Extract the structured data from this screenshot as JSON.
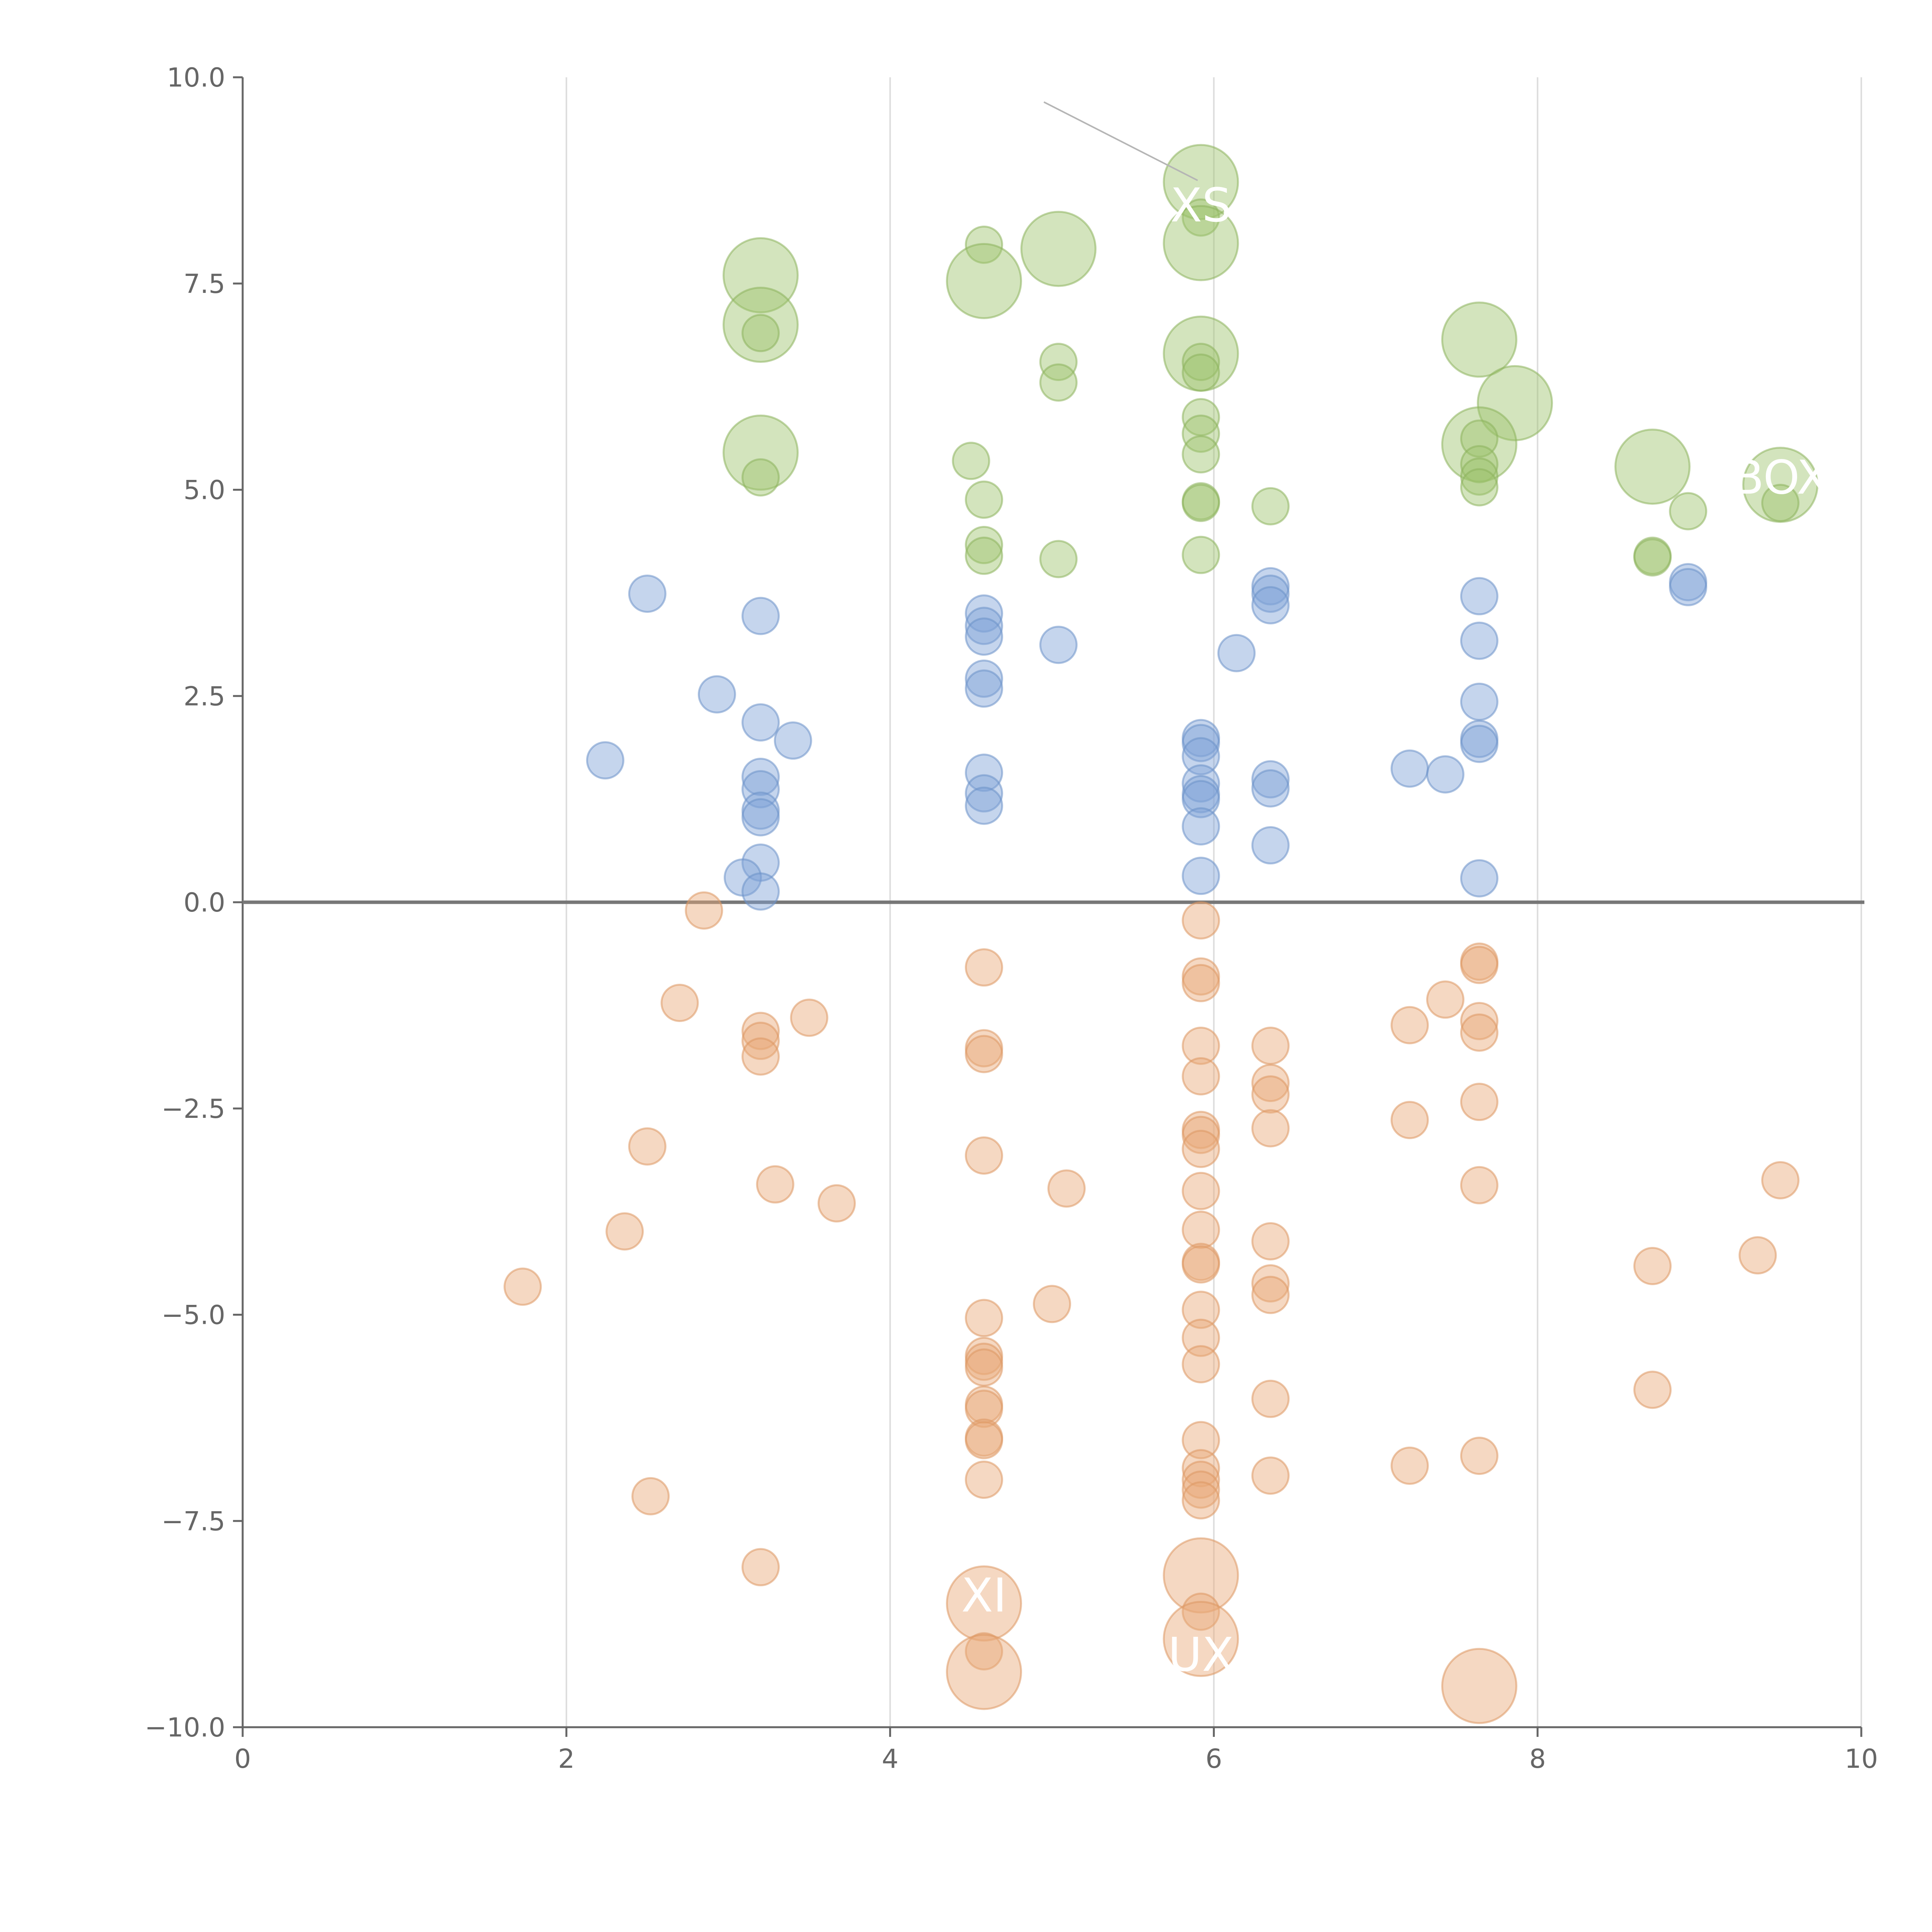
{
  "chart_data": {
    "type": "scatter",
    "title": "",
    "xlabel": "",
    "ylabel": "",
    "xlim": [
      0,
      10
    ],
    "ylim": [
      -10,
      10
    ],
    "x_ticks": [
      0,
      2,
      4,
      6,
      8,
      10
    ],
    "x_tick_labels": [
      "0",
      "2",
      "4",
      "6",
      "8",
      "10"
    ],
    "y_ticks": [
      10,
      7.5,
      5,
      2.5,
      0,
      -2.5,
      -5,
      -7.5,
      -10
    ],
    "y_tick_labels": [
      "10.0",
      "7.5",
      "5.0",
      "2.5",
      "0.0",
      "−2.5",
      "−5.0",
      "−7.5",
      "−10.0"
    ],
    "grid": "vertical",
    "zero_line": true,
    "series": [
      {
        "name": "green",
        "color": "#9dc46d",
        "stroke": "#8db35d",
        "points": [
          {
            "x": 3.2,
            "y": 7.6,
            "s": 2
          },
          {
            "x": 3.2,
            "y": 7.0,
            "s": 2
          },
          {
            "x": 3.2,
            "y": 6.9,
            "s": 1
          },
          {
            "x": 3.2,
            "y": 5.45,
            "s": 2
          },
          {
            "x": 3.2,
            "y": 5.15,
            "s": 1
          },
          {
            "x": 4.58,
            "y": 7.97,
            "s": 1
          },
          {
            "x": 4.58,
            "y": 7.53,
            "s": 2
          },
          {
            "x": 5.04,
            "y": 7.92,
            "s": 2
          },
          {
            "x": 5.04,
            "y": 6.55,
            "s": 1
          },
          {
            "x": 5.04,
            "y": 6.3,
            "s": 1
          },
          {
            "x": 4.5,
            "y": 5.35,
            "s": 1
          },
          {
            "x": 4.58,
            "y": 4.88,
            "s": 1
          },
          {
            "x": 4.58,
            "y": 4.33,
            "s": 1
          },
          {
            "x": 4.58,
            "y": 4.2,
            "s": 1
          },
          {
            "x": 5.04,
            "y": 4.16,
            "s": 1
          },
          {
            "x": 5.92,
            "y": 8.73,
            "s": 2
          },
          {
            "x": 5.92,
            "y": 8.3,
            "s": 1
          },
          {
            "x": 5.92,
            "y": 7.99,
            "s": 2
          },
          {
            "x": 5.92,
            "y": 6.65,
            "s": 2
          },
          {
            "x": 5.92,
            "y": 6.55,
            "s": 1
          },
          {
            "x": 5.92,
            "y": 6.42,
            "s": 1
          },
          {
            "x": 5.92,
            "y": 5.88,
            "s": 1
          },
          {
            "x": 5.92,
            "y": 5.68,
            "s": 1
          },
          {
            "x": 5.92,
            "y": 5.43,
            "s": 1
          },
          {
            "x": 5.92,
            "y": 4.86,
            "s": 1
          },
          {
            "x": 5.92,
            "y": 4.84,
            "s": 1
          },
          {
            "x": 5.92,
            "y": 4.21,
            "s": 1
          },
          {
            "x": 6.35,
            "y": 4.8,
            "s": 1
          },
          {
            "x": 7.64,
            "y": 6.82,
            "s": 2
          },
          {
            "x": 7.86,
            "y": 6.05,
            "s": 2
          },
          {
            "x": 7.64,
            "y": 5.55,
            "s": 2
          },
          {
            "x": 7.64,
            "y": 5.62,
            "s": 1
          },
          {
            "x": 7.64,
            "y": 5.31,
            "s": 1
          },
          {
            "x": 7.64,
            "y": 5.16,
            "s": 1
          },
          {
            "x": 7.64,
            "y": 5.03,
            "s": 1
          },
          {
            "x": 8.71,
            "y": 5.28,
            "s": 2
          },
          {
            "x": 9.5,
            "y": 5.06,
            "s": 2
          },
          {
            "x": 9.5,
            "y": 4.84,
            "s": 1
          },
          {
            "x": 8.93,
            "y": 4.74,
            "s": 1
          },
          {
            "x": 8.71,
            "y": 4.2,
            "s": 1
          },
          {
            "x": 8.71,
            "y": 4.18,
            "s": 1
          }
        ]
      },
      {
        "name": "blue",
        "color": "#7ea2d6",
        "stroke": "#6c92c9",
        "points": [
          {
            "x": 2.5,
            "y": 3.74,
            "s": 1
          },
          {
            "x": 3.2,
            "y": 3.47,
            "s": 1
          },
          {
            "x": 2.93,
            "y": 2.52,
            "s": 1
          },
          {
            "x": 3.2,
            "y": 2.18,
            "s": 1
          },
          {
            "x": 3.4,
            "y": 1.96,
            "s": 1
          },
          {
            "x": 2.24,
            "y": 1.72,
            "s": 1
          },
          {
            "x": 3.2,
            "y": 1.52,
            "s": 1
          },
          {
            "x": 3.2,
            "y": 1.37,
            "s": 1
          },
          {
            "x": 3.2,
            "y": 1.11,
            "s": 1
          },
          {
            "x": 3.2,
            "y": 1.03,
            "s": 1
          },
          {
            "x": 3.2,
            "y": 0.48,
            "s": 1
          },
          {
            "x": 3.09,
            "y": 0.3,
            "s": 1
          },
          {
            "x": 3.2,
            "y": 0.13,
            "s": 1
          },
          {
            "x": 4.58,
            "y": 3.5,
            "s": 1
          },
          {
            "x": 4.58,
            "y": 3.35,
            "s": 1
          },
          {
            "x": 4.58,
            "y": 3.22,
            "s": 1
          },
          {
            "x": 5.04,
            "y": 3.12,
            "s": 1
          },
          {
            "x": 4.58,
            "y": 2.71,
            "s": 1
          },
          {
            "x": 4.58,
            "y": 2.59,
            "s": 1
          },
          {
            "x": 4.58,
            "y": 1.57,
            "s": 1
          },
          {
            "x": 4.58,
            "y": 1.32,
            "s": 1
          },
          {
            "x": 4.58,
            "y": 1.17,
            "s": 1
          },
          {
            "x": 6.35,
            "y": 3.83,
            "s": 1
          },
          {
            "x": 6.35,
            "y": 3.74,
            "s": 1
          },
          {
            "x": 6.35,
            "y": 3.6,
            "s": 1
          },
          {
            "x": 6.14,
            "y": 3.02,
            "s": 1
          },
          {
            "x": 5.92,
            "y": 1.99,
            "s": 1
          },
          {
            "x": 5.92,
            "y": 1.93,
            "s": 1
          },
          {
            "x": 5.92,
            "y": 1.77,
            "s": 1
          },
          {
            "x": 6.35,
            "y": 1.49,
            "s": 1
          },
          {
            "x": 5.92,
            "y": 1.44,
            "s": 1
          },
          {
            "x": 6.35,
            "y": 1.38,
            "s": 1
          },
          {
            "x": 5.92,
            "y": 1.31,
            "s": 1
          },
          {
            "x": 5.92,
            "y": 1.25,
            "s": 1
          },
          {
            "x": 5.92,
            "y": 0.92,
            "s": 1
          },
          {
            "x": 6.35,
            "y": 0.69,
            "s": 1
          },
          {
            "x": 5.92,
            "y": 0.32,
            "s": 1
          },
          {
            "x": 7.64,
            "y": 3.71,
            "s": 1
          },
          {
            "x": 7.64,
            "y": 3.17,
            "s": 1
          },
          {
            "x": 7.64,
            "y": 2.43,
            "s": 1
          },
          {
            "x": 7.64,
            "y": 1.98,
            "s": 1
          },
          {
            "x": 7.64,
            "y": 1.92,
            "s": 1
          },
          {
            "x": 7.21,
            "y": 1.62,
            "s": 1
          },
          {
            "x": 7.43,
            "y": 1.55,
            "s": 1
          },
          {
            "x": 7.64,
            "y": 0.29,
            "s": 1
          },
          {
            "x": 8.93,
            "y": 3.88,
            "s": 1
          },
          {
            "x": 8.93,
            "y": 3.82,
            "s": 1
          }
        ]
      },
      {
        "name": "orange",
        "color": "#e9a877",
        "stroke": "#dc9762",
        "points": [
          {
            "x": 2.85,
            "y": -0.1,
            "s": 1
          },
          {
            "x": 2.7,
            "y": -1.22,
            "s": 1
          },
          {
            "x": 3.2,
            "y": -1.56,
            "s": 1
          },
          {
            "x": 3.2,
            "y": -1.68,
            "s": 1
          },
          {
            "x": 3.2,
            "y": -1.87,
            "s": 1
          },
          {
            "x": 3.5,
            "y": -1.4,
            "s": 1
          },
          {
            "x": 2.5,
            "y": -2.96,
            "s": 1
          },
          {
            "x": 3.29,
            "y": -3.42,
            "s": 1
          },
          {
            "x": 3.67,
            "y": -3.65,
            "s": 1
          },
          {
            "x": 2.36,
            "y": -3.99,
            "s": 1
          },
          {
            "x": 1.73,
            "y": -4.66,
            "s": 1
          },
          {
            "x": 2.52,
            "y": -7.2,
            "s": 1
          },
          {
            "x": 3.2,
            "y": -8.06,
            "s": 1
          },
          {
            "x": 4.58,
            "y": -0.79,
            "s": 1
          },
          {
            "x": 4.58,
            "y": -1.77,
            "s": 1
          },
          {
            "x": 4.58,
            "y": -1.84,
            "s": 1
          },
          {
            "x": 4.58,
            "y": -3.07,
            "s": 1
          },
          {
            "x": 5.09,
            "y": -3.47,
            "s": 1
          },
          {
            "x": 4.58,
            "y": -5.04,
            "s": 1
          },
          {
            "x": 5.0,
            "y": -4.87,
            "s": 1
          },
          {
            "x": 4.58,
            "y": -5.5,
            "s": 1
          },
          {
            "x": 4.58,
            "y": -5.57,
            "s": 1
          },
          {
            "x": 4.58,
            "y": -5.64,
            "s": 1
          },
          {
            "x": 4.58,
            "y": -6.09,
            "s": 1
          },
          {
            "x": 4.58,
            "y": -6.14,
            "s": 1
          },
          {
            "x": 4.58,
            "y": -6.49,
            "s": 1
          },
          {
            "x": 4.58,
            "y": -6.52,
            "s": 1
          },
          {
            "x": 4.58,
            "y": -7.0,
            "s": 1
          },
          {
            "x": 4.58,
            "y": -8.5,
            "s": 2
          },
          {
            "x": 4.58,
            "y": -9.08,
            "s": 1
          },
          {
            "x": 4.58,
            "y": -9.33,
            "s": 2
          },
          {
            "x": 5.92,
            "y": -0.22,
            "s": 1
          },
          {
            "x": 5.92,
            "y": -0.9,
            "s": 1
          },
          {
            "x": 5.92,
            "y": -0.98,
            "s": 1
          },
          {
            "x": 5.92,
            "y": -1.74,
            "s": 1
          },
          {
            "x": 5.92,
            "y": -2.11,
            "s": 1
          },
          {
            "x": 5.92,
            "y": -2.76,
            "s": 1
          },
          {
            "x": 5.92,
            "y": -2.82,
            "s": 1
          },
          {
            "x": 5.92,
            "y": -2.99,
            "s": 1
          },
          {
            "x": 5.92,
            "y": -3.5,
            "s": 1
          },
          {
            "x": 5.92,
            "y": -3.97,
            "s": 1
          },
          {
            "x": 5.92,
            "y": -4.36,
            "s": 1
          },
          {
            "x": 5.92,
            "y": -4.39,
            "s": 1
          },
          {
            "x": 5.92,
            "y": -4.94,
            "s": 1
          },
          {
            "x": 5.92,
            "y": -5.28,
            "s": 1
          },
          {
            "x": 5.92,
            "y": -5.6,
            "s": 1
          },
          {
            "x": 5.92,
            "y": -6.52,
            "s": 1
          },
          {
            "x": 5.92,
            "y": -6.86,
            "s": 1
          },
          {
            "x": 5.92,
            "y": -7.0,
            "s": 1
          },
          {
            "x": 5.92,
            "y": -7.12,
            "s": 1
          },
          {
            "x": 5.92,
            "y": -7.25,
            "s": 1
          },
          {
            "x": 5.92,
            "y": -8.16,
            "s": 2
          },
          {
            "x": 5.92,
            "y": -8.6,
            "s": 1
          },
          {
            "x": 5.92,
            "y": -8.93,
            "s": 2
          },
          {
            "x": 6.35,
            "y": -1.74,
            "s": 1
          },
          {
            "x": 6.35,
            "y": -2.19,
            "s": 1
          },
          {
            "x": 6.35,
            "y": -2.33,
            "s": 1
          },
          {
            "x": 6.35,
            "y": -2.74,
            "s": 1
          },
          {
            "x": 6.35,
            "y": -4.11,
            "s": 1
          },
          {
            "x": 6.35,
            "y": -4.62,
            "s": 1
          },
          {
            "x": 6.35,
            "y": -4.76,
            "s": 1
          },
          {
            "x": 6.35,
            "y": -6.02,
            "s": 1
          },
          {
            "x": 6.35,
            "y": -6.95,
            "s": 1
          },
          {
            "x": 7.21,
            "y": -1.49,
            "s": 1
          },
          {
            "x": 7.43,
            "y": -1.18,
            "s": 1
          },
          {
            "x": 7.21,
            "y": -2.64,
            "s": 1
          },
          {
            "x": 7.21,
            "y": -6.83,
            "s": 1
          },
          {
            "x": 7.64,
            "y": -0.72,
            "s": 1
          },
          {
            "x": 7.64,
            "y": -0.76,
            "s": 1
          },
          {
            "x": 7.64,
            "y": -1.44,
            "s": 1
          },
          {
            "x": 7.64,
            "y": -1.58,
            "s": 1
          },
          {
            "x": 7.64,
            "y": -2.42,
            "s": 1
          },
          {
            "x": 7.64,
            "y": -3.43,
            "s": 1
          },
          {
            "x": 7.64,
            "y": -6.71,
            "s": 1
          },
          {
            "x": 7.64,
            "y": -9.5,
            "s": 2
          },
          {
            "x": 8.71,
            "y": -4.41,
            "s": 1
          },
          {
            "x": 8.71,
            "y": -5.91,
            "s": 1
          },
          {
            "x": 9.36,
            "y": -4.28,
            "s": 1
          },
          {
            "x": 9.5,
            "y": -3.37,
            "s": 1
          }
        ]
      }
    ],
    "annotations": [
      {
        "text": "XS",
        "x": 5.92,
        "y": 8.45,
        "leader_from": [
          4.95,
          9.7
        ],
        "leader_to": [
          5.9,
          8.75
        ],
        "leader_color": "#b5b5b5"
      },
      {
        "text": "BOX",
        "x": 9.5,
        "y": 5.15
      },
      {
        "text": "XI",
        "x": 4.58,
        "y": -8.4
      },
      {
        "text": "UX",
        "x": 5.92,
        "y": -9.12
      }
    ]
  }
}
